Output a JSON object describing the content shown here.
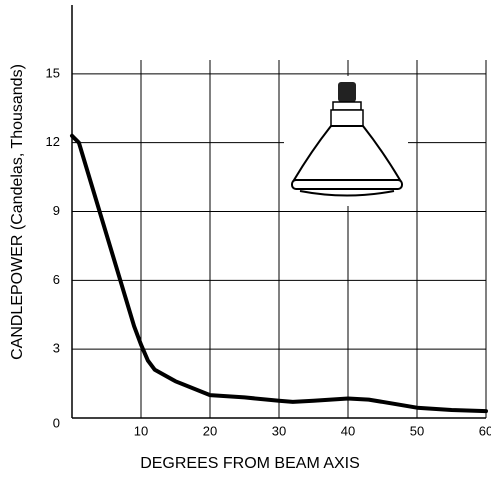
{
  "chart_data": {
    "type": "line",
    "x_label": "DEGREES FROM BEAM AXIS",
    "y_label": "CANDLEPOWER (Candelas, Thousands)",
    "x": [
      0,
      1,
      3,
      5,
      7,
      9,
      10,
      11,
      12,
      15,
      20,
      25,
      30,
      32,
      35,
      40,
      43,
      47,
      50,
      55,
      60
    ],
    "series": [
      {
        "name": "Candlepower",
        "color": "#000000",
        "values": [
          12.3,
          12,
          10,
          8,
          6,
          4,
          3.2,
          2.5,
          2.1,
          1.6,
          1.0,
          0.9,
          0.75,
          0.7,
          0.75,
          0.85,
          0.8,
          0.6,
          0.45,
          0.35,
          0.3
        ]
      }
    ],
    "xlim": [
      0,
      60
    ],
    "xticks": [
      10,
      20,
      30,
      40,
      50,
      60
    ],
    "ylim": [
      0,
      18
    ],
    "yticks": [
      0,
      3,
      6,
      9,
      12,
      15
    ],
    "grid": true
  }
}
